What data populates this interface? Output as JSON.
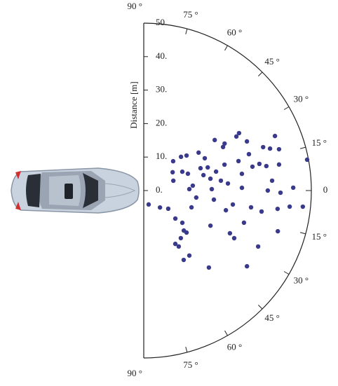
{
  "chart_data": {
    "type": "polar-scatter",
    "r_label": "Distance [m]",
    "rlim": [
      0,
      50
    ],
    "rticks": [
      {
        "value": 0,
        "label": "0."
      },
      {
        "value": 10,
        "label": "10."
      },
      {
        "value": 20,
        "label": "20."
      },
      {
        "value": 30,
        "label": "30."
      },
      {
        "value": 40,
        "label": "40."
      },
      {
        "value": 50,
        "label": "50."
      }
    ],
    "thetalim": [
      -90,
      90
    ],
    "thetaticks": [
      {
        "value": 90,
        "label": "90 °"
      },
      {
        "value": 75,
        "label": "75 °"
      },
      {
        "value": 60,
        "label": "60 °"
      },
      {
        "value": 45,
        "label": "45 °"
      },
      {
        "value": 30,
        "label": "30 °"
      },
      {
        "value": 15,
        "label": "15 °"
      },
      0,
      {
        "value": -15,
        "label": "15 °"
      },
      {
        "value": -30,
        "label": "30 °"
      },
      {
        "value": -45,
        "label": "45 °"
      },
      {
        "value": -60,
        "label": "60 °"
      },
      {
        "value": -75,
        "label": "75 °"
      },
      {
        "value": -90,
        "label": "90 °"
      }
    ],
    "series": [
      {
        "color": "#3a3a8c",
        "theta": [
          -70.7,
          -46.2,
          -36.6,
          32.4,
          45,
          42.2,
          26.1,
          18.4,
          -41.6,
          -39.9,
          -45,
          -52.1,
          -44.5,
          -59.4,
          -58,
          -55,
          -60.1,
          20.9,
          1.8,
          5.7,
          -19.4,
          -7.6,
          39.3,
          34.7,
          21.5,
          27.9,
          19.9,
          10.1,
          1.2,
          -27.8,
          -49.8,
          35.5,
          14.7,
          -7.4,
          7.3,
          17.8,
          30.2,
          4.8,
          -13.5,
          -8.9,
          -26.4,
          -27.8,
          30.3,
          31.1,
          17.3,
          9.7,
          1.6,
          25.5,
          19.1,
          12.4,
          -8.9,
          -17.8,
          -36.3,
          -26.1,
          13,
          -10.1,
          20,
          0,
          18.4,
          4.4,
          22.6,
          17,
          10.9,
          -0.9,
          -7.8,
          -16.9,
          -6.3,
          -5.8,
          10.7,
          1.1,
          11.3,
          28.8,
          14.5
        ],
        "r": [
          4.4,
          7,
          9.1,
          10.2,
          12.4,
          15,
          12.8,
          9.3,
          12.6,
          15,
          16.9,
          18,
          17.9,
          18.5,
          19.7,
          23.7,
          23.9,
          14.1,
          13.6,
          14.7,
          15.1,
          15.8,
          16.5,
          19.9,
          18.2,
          20.6,
          20.3,
          20.2,
          20.3,
          22.5,
          30.1,
          26,
          22.3,
          21.1,
          23.2,
          25.3,
          27.9,
          25.2,
          25.2,
          26.9,
          28.7,
          30.5,
          32,
          33.2,
          29.6,
          29.7,
          29.3,
          34.1,
          33.2,
          33.2,
          32.4,
          31.4,
          38.2,
          38,
          35.4,
          35.7,
          37.9,
          37,
          39.7,
          38.4,
          42.4,
          42.2,
          41.1,
          40.8,
          40.3,
          41.8,
          43.8,
          47.7,
          49.6,
          44.6,
          37.3,
          27,
          18.4
        ]
      }
    ]
  }
}
